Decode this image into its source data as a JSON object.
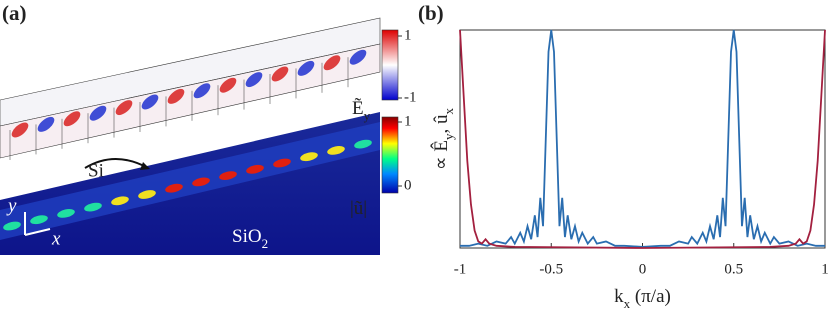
{
  "panel_a": {
    "label": "(a)",
    "material_top": "Si",
    "substrate": [
      {
        "text": "SiO"
      },
      {
        "sub": "2"
      }
    ],
    "axis_y": "y",
    "axis_x": "x",
    "colorbar_field": {
      "label": [
        {
          "text": "Ẽ"
        },
        {
          "sub": "y"
        }
      ],
      "lim": [
        -1,
        1
      ],
      "ticks": [
        1,
        -1
      ]
    },
    "colorbar_disp": {
      "label": [
        {
          "text": "|ũ|"
        }
      ],
      "lim": [
        0,
        1
      ],
      "ticks": [
        1,
        0
      ]
    }
  },
  "chart_data": {
    "type": "line",
    "label": "(b)",
    "xlabel": [
      {
        "text": "k"
      },
      {
        "sub": "x"
      },
      {
        "text": " (π/a)"
      }
    ],
    "ylabel": [
      {
        "text": "∝ Ê"
      },
      {
        "sub": "y"
      },
      {
        "text": ", û"
      },
      {
        "sub": "x"
      }
    ],
    "xlim": [
      -1,
      1
    ],
    "ylim": [
      0,
      1
    ],
    "xticks": [
      -1,
      -0.5,
      0,
      0.5,
      1
    ],
    "series": [
      {
        "color": "#2a6db0",
        "x": [
          -1,
          -0.95,
          -0.9,
          -0.85,
          -0.8,
          -0.75,
          -0.72,
          -0.7,
          -0.67,
          -0.65,
          -0.63,
          -0.61,
          -0.59,
          -0.575,
          -0.56,
          -0.545,
          -0.53,
          -0.515,
          -0.5,
          -0.485,
          -0.47,
          -0.455,
          -0.44,
          -0.425,
          -0.41,
          -0.39,
          -0.37,
          -0.35,
          -0.33,
          -0.3,
          -0.27,
          -0.25,
          -0.2,
          -0.15,
          -0.1,
          0,
          0.1,
          0.15,
          0.2,
          0.25,
          0.27,
          0.3,
          0.33,
          0.35,
          0.37,
          0.39,
          0.41,
          0.425,
          0.44,
          0.455,
          0.47,
          0.485,
          0.5,
          0.515,
          0.53,
          0.545,
          0.56,
          0.575,
          0.59,
          0.61,
          0.63,
          0.65,
          0.67,
          0.7,
          0.72,
          0.75,
          0.8,
          0.85,
          0.9,
          0.95,
          1
        ],
        "values": [
          0.01,
          0.01,
          0.02,
          0.01,
          0.03,
          0.02,
          0.05,
          0.02,
          0.07,
          0.03,
          0.1,
          0.04,
          0.15,
          0.05,
          0.23,
          0.1,
          0.5,
          0.9,
          1,
          0.9,
          0.5,
          0.1,
          0.23,
          0.05,
          0.15,
          0.04,
          0.1,
          0.03,
          0.07,
          0.02,
          0.05,
          0.02,
          0.03,
          0.01,
          0.01,
          0.005,
          0.01,
          0.01,
          0.03,
          0.02,
          0.05,
          0.02,
          0.07,
          0.03,
          0.1,
          0.04,
          0.15,
          0.05,
          0.23,
          0.1,
          0.5,
          0.9,
          1,
          0.9,
          0.5,
          0.1,
          0.23,
          0.05,
          0.15,
          0.04,
          0.1,
          0.03,
          0.07,
          0.02,
          0.05,
          0.02,
          0.03,
          0.01,
          0.02,
          0.01,
          0.01
        ]
      },
      {
        "color": "#a3203f",
        "x": [
          -1,
          -0.98,
          -0.96,
          -0.94,
          -0.92,
          -0.9,
          -0.88,
          -0.86,
          -0.84,
          -0.8,
          -0.7,
          0,
          0.7,
          0.8,
          0.84,
          0.86,
          0.88,
          0.9,
          0.92,
          0.94,
          0.96,
          0.98,
          1
        ],
        "values": [
          1,
          0.7,
          0.4,
          0.2,
          0.08,
          0.03,
          0.02,
          0.04,
          0.02,
          0.01,
          0.005,
          0,
          0.005,
          0.01,
          0.02,
          0.04,
          0.02,
          0.03,
          0.08,
          0.2,
          0.4,
          0.7,
          1
        ]
      }
    ]
  }
}
